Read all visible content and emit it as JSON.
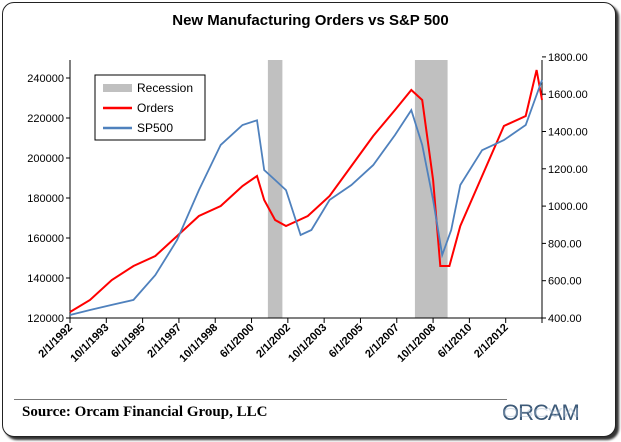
{
  "chart_data": {
    "type": "line",
    "title": "New Manufacturing Orders vs S&P 500",
    "x_tick_labels": [
      "2/1/1992",
      "10/1/1993",
      "6/1/1995",
      "2/1/1997",
      "10/1/1998",
      "6/1/2000",
      "2/1/2002",
      "10/1/2003",
      "6/1/2005",
      "2/1/2007",
      "10/1/2008",
      "6/1/2010",
      "2/1/2012"
    ],
    "x_range": [
      "1992-02",
      "2013-10"
    ],
    "y_left": {
      "ticks": [
        "120000",
        "140000",
        "160000",
        "180000",
        "200000",
        "220000",
        "240000"
      ],
      "range": [
        120000,
        250000
      ]
    },
    "y_right": {
      "ticks": [
        "400.00",
        "600.00",
        "800.00",
        "1000.00",
        "1200.00",
        "1400.00",
        "1600.00",
        "1800.00"
      ],
      "range": [
        400,
        1800
      ]
    },
    "legend": {
      "placement": "top-left",
      "entries": [
        "Recession",
        "Orders",
        "SP500"
      ]
    },
    "recessions": [
      [
        "2001-03",
        "2001-11"
      ],
      [
        "2007-12",
        "2009-06"
      ]
    ],
    "series": [
      {
        "name": "Orders",
        "axis": "left",
        "color": "#ff0000",
        "points": [
          [
            "1992-02",
            123000
          ],
          [
            "1993-01",
            129000
          ],
          [
            "1994-01",
            139000
          ],
          [
            "1995-01",
            146000
          ],
          [
            "1996-01",
            151000
          ],
          [
            "1997-01",
            161000
          ],
          [
            "1998-01",
            171000
          ],
          [
            "1999-01",
            176000
          ],
          [
            "2000-01",
            186000
          ],
          [
            "2000-09",
            191000
          ],
          [
            "2001-01",
            179000
          ],
          [
            "2001-07",
            169000
          ],
          [
            "2002-01",
            166000
          ],
          [
            "2003-01",
            171000
          ],
          [
            "2004-01",
            181000
          ],
          [
            "2005-01",
            196000
          ],
          [
            "2006-01",
            211000
          ],
          [
            "2007-01",
            224000
          ],
          [
            "2007-10",
            234000
          ],
          [
            "2008-04",
            229000
          ],
          [
            "2008-10",
            189000
          ],
          [
            "2009-02",
            146000
          ],
          [
            "2009-07",
            146000
          ],
          [
            "2010-01",
            166000
          ],
          [
            "2011-01",
            191000
          ],
          [
            "2012-01",
            216000
          ],
          [
            "2013-01",
            221000
          ],
          [
            "2013-07",
            244000
          ],
          [
            "2013-10",
            229000
          ]
        ]
      },
      {
        "name": "SP500",
        "axis": "right",
        "color": "#4f81bd",
        "points": [
          [
            "1992-02",
            416
          ],
          [
            "1993-01",
            443
          ],
          [
            "1994-01",
            470
          ],
          [
            "1995-01",
            497
          ],
          [
            "1996-01",
            630
          ],
          [
            "1997-01",
            818
          ],
          [
            "1998-01",
            1086
          ],
          [
            "1999-01",
            1328
          ],
          [
            "2000-01",
            1435
          ],
          [
            "2000-09",
            1460
          ],
          [
            "2001-01",
            1193
          ],
          [
            "2001-07",
            1140
          ],
          [
            "2002-01",
            1086
          ],
          [
            "2002-09",
            845
          ],
          [
            "2003-03",
            872
          ],
          [
            "2004-01",
            1033
          ],
          [
            "2005-01",
            1113
          ],
          [
            "2006-01",
            1220
          ],
          [
            "2007-01",
            1381
          ],
          [
            "2007-10",
            1515
          ],
          [
            "2008-04",
            1328
          ],
          [
            "2008-10",
            1033
          ],
          [
            "2009-03",
            738
          ],
          [
            "2009-08",
            872
          ],
          [
            "2010-01",
            1113
          ],
          [
            "2011-01",
            1300
          ],
          [
            "2012-01",
            1354
          ],
          [
            "2013-01",
            1435
          ],
          [
            "2013-10",
            1676
          ]
        ]
      }
    ],
    "recession_color": "#c0c0c0"
  },
  "footer": {
    "source": "Source: Orcam Financial Group, LLC",
    "logo": "ORCAM"
  }
}
